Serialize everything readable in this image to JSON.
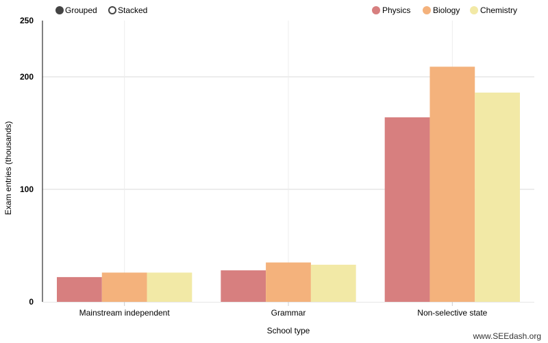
{
  "controls": {
    "options": [
      {
        "label": "Grouped",
        "selected": true
      },
      {
        "label": "Stacked",
        "selected": false
      }
    ]
  },
  "watermark": "www.SEEdash.org",
  "chart_data": {
    "type": "bar",
    "mode": "grouped",
    "categories": [
      "Mainstream independent",
      "Grammar",
      "Non-selective state"
    ],
    "series": [
      {
        "name": "Physics",
        "color": "#d77f7f",
        "values": [
          22,
          28,
          164
        ]
      },
      {
        "name": "Biology",
        "color": "#f4b27c",
        "values": [
          26,
          35,
          209
        ]
      },
      {
        "name": "Chemistry",
        "color": "#f2e9a6",
        "values": [
          26,
          33,
          186
        ]
      }
    ],
    "xlabel": "School type",
    "ylabel": "Exam entries (thousands)",
    "ylim": [
      0,
      250
    ],
    "yticks": [
      0,
      100,
      200,
      250
    ],
    "grid": true,
    "legend_position": "top-right"
  }
}
